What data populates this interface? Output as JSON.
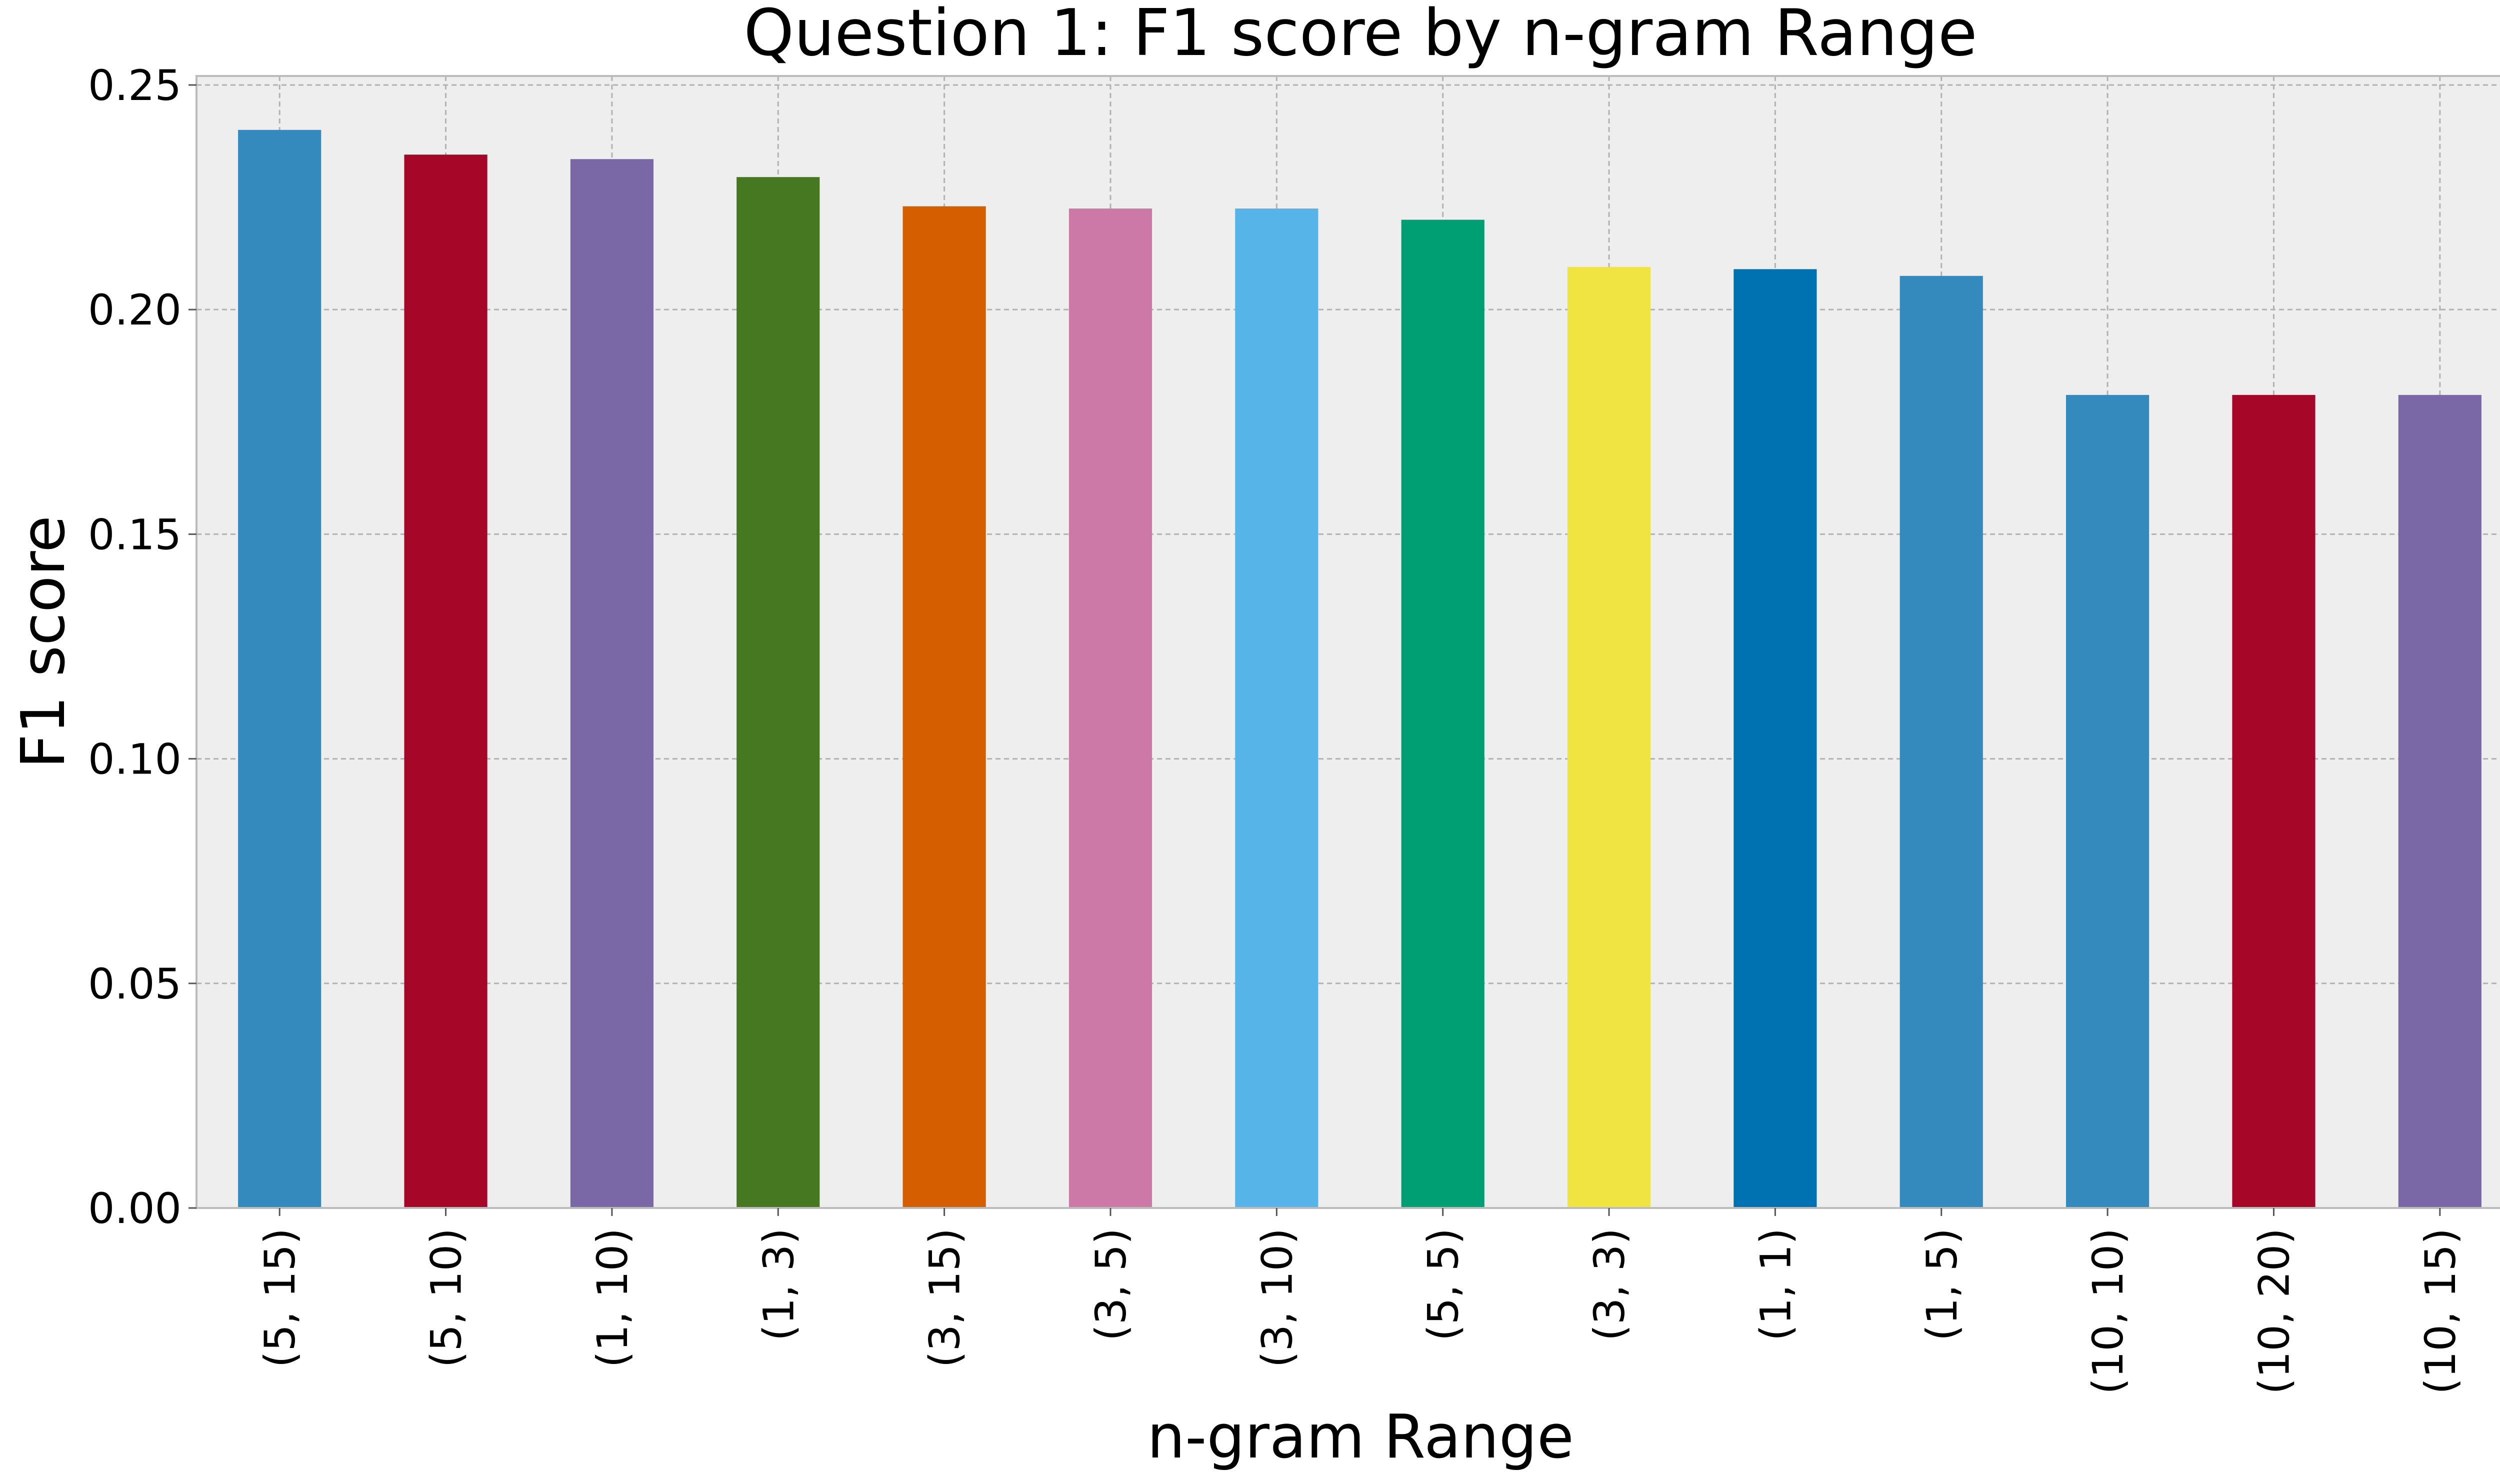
{
  "chart_data": {
    "type": "bar",
    "title": "Question 1: F1 score by n-gram Range",
    "xlabel": "n-gram Range",
    "ylabel": "F1 score",
    "categories": [
      "(5, 15)",
      "(5, 10)",
      "(1, 10)",
      "(1, 3)",
      "(3, 15)",
      "(3, 5)",
      "(3, 10)",
      "(5, 5)",
      "(3, 3)",
      "(1, 1)",
      "(1, 5)",
      "(10, 10)",
      "(10, 20)",
      "(10, 15)"
    ],
    "values": [
      0.24,
      0.2345,
      0.2335,
      0.2295,
      0.223,
      0.2225,
      0.2225,
      0.22,
      0.2095,
      0.209,
      0.2075,
      0.181,
      0.181,
      0.181
    ],
    "colors": [
      "#348ABD",
      "#A60628",
      "#7A68A6",
      "#467821",
      "#D55E00",
      "#CC79A7",
      "#56B4E9",
      "#009E73",
      "#F0E442",
      "#0072B2",
      "#348ABD",
      "#348ABD",
      "#A60628",
      "#7A68A6"
    ],
    "ylim": [
      0,
      0.252
    ],
    "yticks": [
      0.0,
      0.05,
      0.1,
      0.15,
      0.2,
      0.25
    ],
    "ytick_labels": [
      "0.00",
      "0.05",
      "0.10",
      "0.15",
      "0.20",
      "0.25"
    ],
    "grid": true,
    "legend": "none"
  }
}
